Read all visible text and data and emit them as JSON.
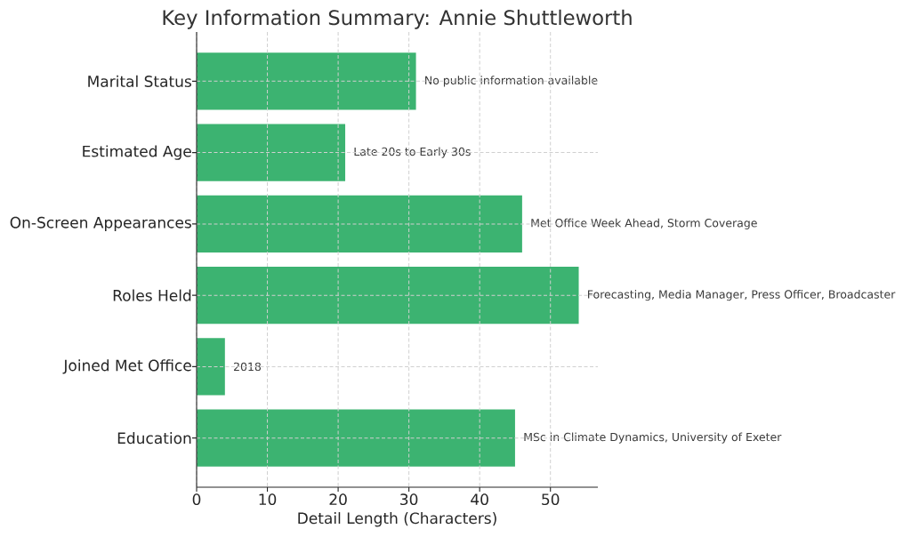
{
  "chart_data": {
    "type": "bar",
    "orientation": "horizontal",
    "title": "Key Information Summary: Annie Shuttleworth",
    "xlabel": "Detail Length (Characters)",
    "categories": [
      "Marital Status",
      "Estimated Age",
      "On-Screen Appearances",
      "Roles Held",
      "Joined Met Office",
      "Education"
    ],
    "values": [
      31,
      21,
      46,
      54,
      4,
      45
    ],
    "color": "#3cb371",
    "xlim": [
      0,
      56.7
    ],
    "xticks": [
      0,
      10,
      20,
      30,
      40,
      50
    ],
    "grid": true,
    "annotations": [
      {
        "text": "No public information available",
        "x": 31,
        "y": "Marital Status"
      },
      {
        "text": "Late 20s to Early 30s",
        "x": 21,
        "y": "Estimated Age"
      },
      {
        "text": "Met Office Week Ahead, Storm Coverage",
        "x": 46,
        "y": "On-Screen Appearances"
      },
      {
        "text": "Forecasting, Media Manager, Press Officer, Broadcaster",
        "x": 54,
        "y": "Roles Held"
      },
      {
        "text": "2018",
        "x": 4,
        "y": "Joined Met Office"
      },
      {
        "text": "MSc in Climate Dynamics, University of Exeter",
        "x": 45,
        "y": "Education"
      }
    ]
  }
}
